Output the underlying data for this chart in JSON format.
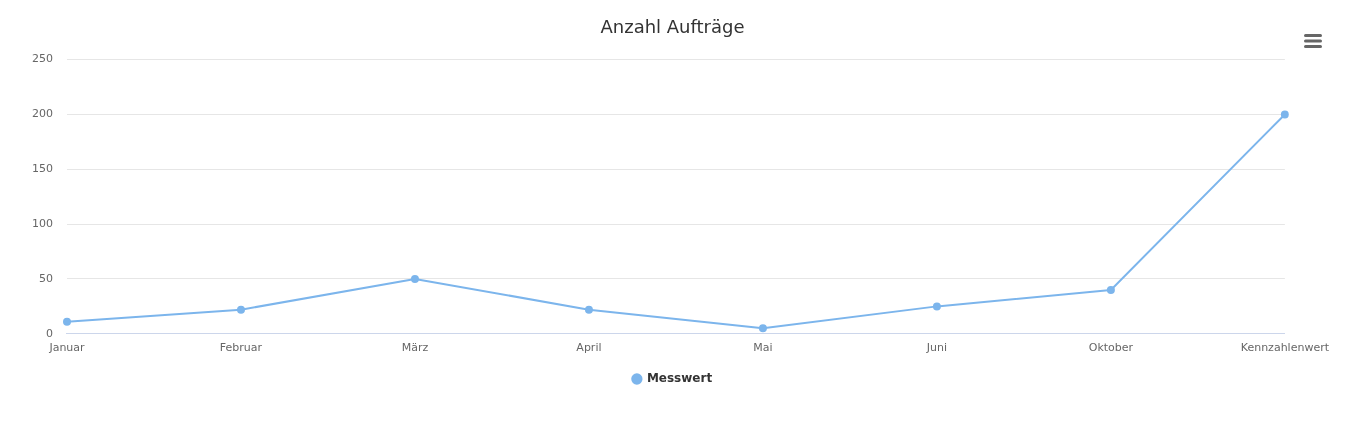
{
  "chart_data": {
    "type": "line",
    "title": "Anzahl Aufträge",
    "categories": [
      "Januar",
      "Februar",
      "März",
      "April",
      "Mai",
      "Juni",
      "Oktober",
      "Kennzahlenwert"
    ],
    "series": [
      {
        "name": "Messwert",
        "color": "#7cb5ec",
        "values": [
          11,
          22,
          50,
          22,
          5,
          25,
          40,
          200
        ]
      }
    ],
    "ylim": [
      0,
      250
    ],
    "yticks": [
      0,
      50,
      100,
      150,
      200,
      250
    ],
    "grid": "y",
    "legend": "bottom",
    "marker": "circle"
  }
}
